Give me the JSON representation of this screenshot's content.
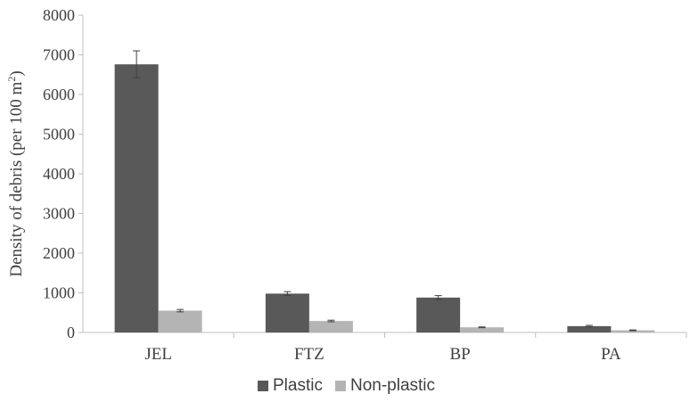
{
  "chart_data": {
    "type": "bar",
    "title": "",
    "xlabel": "",
    "ylabel": {
      "prefix": "Density of debris (per 100 m",
      "superscript": "2",
      "suffix": ")"
    },
    "categories": [
      "JEL",
      "FTZ",
      "BP",
      "PA"
    ],
    "series": [
      {
        "name": "Plastic",
        "color": "#595959",
        "values": [
          6760,
          980,
          880,
          160
        ],
        "errors": [
          340,
          50,
          50,
          20
        ]
      },
      {
        "name": "Non-plastic",
        "color": "#b4b4b4",
        "values": [
          550,
          290,
          130,
          55
        ],
        "errors": [
          30,
          20,
          10,
          10
        ]
      }
    ],
    "ylim": [
      0,
      8000
    ],
    "yticks": [
      0,
      1000,
      2000,
      3000,
      4000,
      5000,
      6000,
      7000,
      8000
    ],
    "grid": false,
    "legend": "bottom-center"
  }
}
